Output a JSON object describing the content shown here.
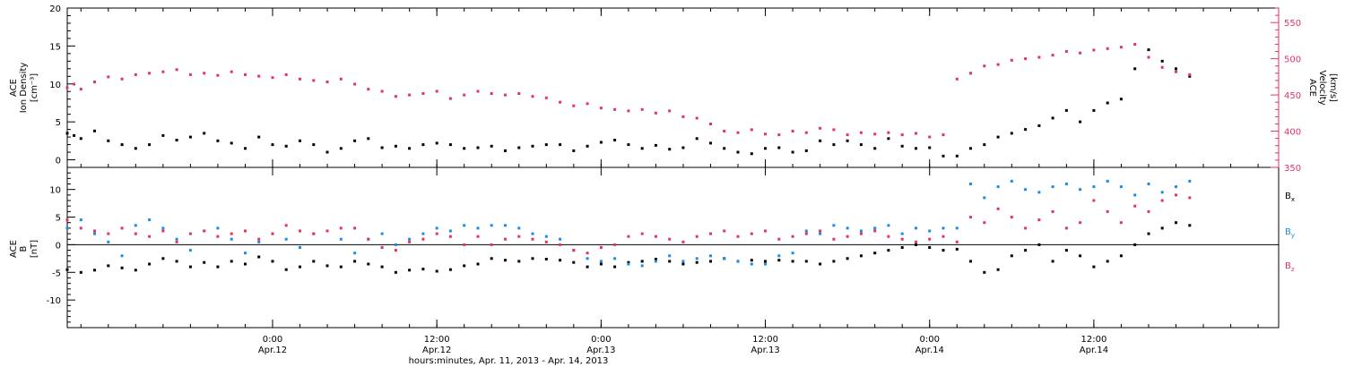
{
  "chart_data": [
    {
      "type": "scatter",
      "panel": "top",
      "ylabel_lines": [
        "ACE",
        "Ion Density",
        "[cm⁻³]"
      ],
      "y2label_lines": [
        "ACE",
        "Velocity",
        "[km/s]"
      ],
      "ylim": [
        -1,
        20
      ],
      "y2lim": [
        350,
        570
      ],
      "yticks": [
        0,
        5,
        10,
        15,
        20
      ],
      "y2ticks": [
        350,
        400,
        450,
        500,
        550
      ],
      "series": [
        {
          "axis": "left",
          "color": "#000000",
          "x": [
            0,
            0.5,
            1,
            2,
            3,
            4,
            5,
            6,
            7,
            8,
            9,
            10,
            11,
            12,
            13,
            14,
            15,
            16,
            17,
            18,
            19,
            20,
            21,
            22,
            23,
            24,
            25,
            26,
            27,
            28,
            29,
            30,
            31,
            32,
            33,
            34,
            35,
            36,
            37,
            38,
            39,
            40,
            41,
            42,
            43,
            44,
            45,
            46,
            47,
            48,
            49,
            50,
            51,
            52,
            53,
            54,
            55,
            56,
            57,
            58,
            59,
            60,
            61,
            62,
            63,
            64,
            65,
            66,
            67,
            68,
            69,
            70,
            71,
            72,
            73,
            74,
            75,
            76,
            77,
            78,
            79,
            80,
            81,
            82
          ],
          "values": [
            3.5,
            3.2,
            2.8,
            3.8,
            2.5,
            2.0,
            1.5,
            2.0,
            3.2,
            2.6,
            3.0,
            3.5,
            2.5,
            2.2,
            1.5,
            3.0,
            2.0,
            1.8,
            2.5,
            2.0,
            1.0,
            1.5,
            2.5,
            2.8,
            1.6,
            1.8,
            1.5,
            2.0,
            2.2,
            2.0,
            1.5,
            1.6,
            1.8,
            1.2,
            1.6,
            1.8,
            2.0,
            2.0,
            1.2,
            1.8,
            2.3,
            2.6,
            2.0,
            1.5,
            1.9,
            1.4,
            1.6,
            2.8,
            2.2,
            1.5,
            1.0,
            0.8,
            1.5,
            1.6,
            1.0,
            1.2,
            2.5,
            2.0,
            2.5,
            2.0,
            1.5,
            2.8,
            1.8,
            1.5,
            1.6,
            0.5,
            0.5,
            1.5,
            2.0,
            3.0,
            3.5,
            4.0,
            4.5,
            5.5,
            6.5,
            5.0,
            6.5,
            7.5,
            8.0,
            12.0,
            14.5,
            13.0,
            12.0,
            11.0
          ]
        },
        {
          "axis": "right",
          "color": "#e33364",
          "x": [
            0,
            0.5,
            1,
            2,
            3,
            4,
            5,
            6,
            7,
            8,
            9,
            10,
            11,
            12,
            13,
            14,
            15,
            16,
            17,
            18,
            19,
            20,
            21,
            22,
            23,
            24,
            25,
            26,
            27,
            28,
            29,
            30,
            31,
            32,
            33,
            34,
            35,
            36,
            37,
            38,
            39,
            40,
            41,
            42,
            43,
            44,
            45,
            46,
            47,
            48,
            49,
            50,
            51,
            52,
            53,
            54,
            55,
            56,
            57,
            58,
            59,
            60,
            61,
            62,
            63,
            64,
            65,
            66,
            67,
            68,
            69,
            70,
            71,
            72,
            73,
            74,
            75,
            76,
            77,
            78,
            79,
            80,
            81,
            82
          ],
          "values": [
            460,
            465,
            458,
            468,
            475,
            472,
            478,
            480,
            482,
            485,
            478,
            480,
            477,
            482,
            478,
            476,
            474,
            478,
            472,
            470,
            468,
            472,
            465,
            458,
            455,
            448,
            450,
            452,
            455,
            445,
            450,
            455,
            452,
            450,
            452,
            448,
            446,
            440,
            435,
            438,
            432,
            430,
            428,
            430,
            425,
            428,
            420,
            418,
            410,
            400,
            398,
            402,
            396,
            395,
            400,
            398,
            404,
            402,
            395,
            398,
            396,
            398,
            395,
            397,
            392,
            395,
            472,
            480,
            490,
            492,
            498,
            500,
            502,
            505,
            510,
            508,
            512,
            514,
            516,
            520,
            502,
            488,
            482,
            478
          ]
        }
      ]
    },
    {
      "type": "scatter",
      "panel": "bottom",
      "ylabel_lines": [
        "ACE",
        "B",
        "[nT]"
      ],
      "ylim": [
        -15,
        14
      ],
      "yticks": [
        -10,
        -5,
        0,
        5,
        10
      ],
      "zero_line": true,
      "series": [
        {
          "name": "Bx",
          "label_main": "B",
          "label_sub": "x",
          "color": "#000000",
          "x": [
            0,
            1,
            2,
            3,
            4,
            5,
            6,
            7,
            8,
            9,
            10,
            11,
            12,
            13,
            14,
            15,
            16,
            17,
            18,
            19,
            20,
            21,
            22,
            23,
            24,
            25,
            26,
            27,
            28,
            29,
            30,
            31,
            32,
            33,
            34,
            35,
            36,
            37,
            38,
            39,
            40,
            41,
            42,
            43,
            44,
            45,
            46,
            47,
            48,
            49,
            50,
            51,
            52,
            53,
            54,
            55,
            56,
            57,
            58,
            59,
            60,
            61,
            62,
            63,
            64,
            65,
            66,
            67,
            68,
            69,
            70,
            71,
            72,
            73,
            74,
            75,
            76,
            77,
            78,
            79,
            80,
            81,
            82
          ],
          "values": [
            -4.5,
            -5.0,
            -4.6,
            -3.8,
            -4.2,
            -4.6,
            -3.5,
            -2.5,
            -3.0,
            -4.0,
            -3.2,
            -4.0,
            -3.0,
            -3.5,
            -2.2,
            -3.0,
            -4.5,
            -4.0,
            -3.0,
            -3.8,
            -4.0,
            -3.0,
            -3.5,
            -4.0,
            -5.0,
            -4.6,
            -4.4,
            -4.8,
            -4.5,
            -3.8,
            -3.5,
            -2.5,
            -2.8,
            -3.0,
            -2.5,
            -2.6,
            -2.8,
            -3.2,
            -4.0,
            -3.5,
            -4.0,
            -3.2,
            -3.0,
            -2.6,
            -3.0,
            -3.5,
            -3.2,
            -3.0,
            -2.5,
            -3.0,
            -2.8,
            -3.0,
            -2.8,
            -3.0,
            -3.0,
            -3.5,
            -3.0,
            -2.5,
            -2.0,
            -1.5,
            -1.0,
            -0.5,
            0.0,
            -0.5,
            -1.0,
            -0.8,
            -3.0,
            -5.0,
            -4.5,
            -2.0,
            -1.0,
            0.0,
            -3.0,
            -1.0,
            -2.0,
            -4.0,
            -3.0,
            -2.0,
            0.0,
            2.0,
            3.0,
            4.0,
            3.5
          ]
        },
        {
          "name": "By",
          "label_main": "B",
          "label_sub": "y",
          "color": "#1f8ae6",
          "x": [
            0,
            1,
            2,
            3,
            4,
            5,
            6,
            7,
            8,
            9,
            10,
            11,
            12,
            13,
            14,
            15,
            16,
            17,
            18,
            19,
            20,
            21,
            22,
            23,
            24,
            25,
            26,
            27,
            28,
            29,
            30,
            31,
            32,
            33,
            34,
            35,
            36,
            37,
            38,
            39,
            40,
            41,
            42,
            43,
            44,
            45,
            46,
            47,
            48,
            49,
            50,
            51,
            52,
            53,
            54,
            55,
            56,
            57,
            58,
            59,
            60,
            61,
            62,
            63,
            64,
            65,
            66,
            67,
            68,
            69,
            70,
            71,
            72,
            73,
            74,
            75,
            76,
            77,
            78,
            79,
            80,
            81,
            82
          ],
          "values": [
            3.0,
            4.5,
            2.0,
            0.5,
            -2.0,
            3.5,
            4.5,
            3.0,
            1.0,
            -1.0,
            2.5,
            3.0,
            1.0,
            -1.5,
            0.5,
            2.0,
            1.0,
            -0.5,
            2.0,
            2.5,
            1.0,
            -1.5,
            1.0,
            2.0,
            0.0,
            1.0,
            2.0,
            3.0,
            2.5,
            3.5,
            3.0,
            3.5,
            3.5,
            3.0,
            2.0,
            1.5,
            1.0,
            -1.0,
            -2.5,
            -3.0,
            -2.5,
            -3.5,
            -3.8,
            -3.0,
            -2.0,
            -3.0,
            -2.5,
            -2.0,
            -2.5,
            -3.0,
            -3.5,
            -3.5,
            -2.0,
            -1.5,
            2.5,
            2.0,
            3.5,
            3.0,
            2.5,
            3.0,
            3.5,
            2.0,
            3.0,
            2.5,
            3.0,
            3.0,
            11.0,
            8.5,
            10.5,
            11.5,
            10.0,
            9.5,
            10.5,
            11.0,
            10.0,
            10.5,
            11.5,
            10.5,
            9.0,
            11.0,
            9.5,
            10.5,
            11.5
          ]
        },
        {
          "name": "Bz",
          "label_main": "B",
          "label_sub": "z",
          "color": "#e33364",
          "x": [
            0,
            1,
            2,
            3,
            4,
            5,
            6,
            7,
            8,
            9,
            10,
            11,
            12,
            13,
            14,
            15,
            16,
            17,
            18,
            19,
            20,
            21,
            22,
            23,
            24,
            25,
            26,
            27,
            28,
            29,
            30,
            31,
            32,
            33,
            34,
            35,
            36,
            37,
            38,
            39,
            40,
            41,
            42,
            43,
            44,
            45,
            46,
            47,
            48,
            49,
            50,
            51,
            52,
            53,
            54,
            55,
            56,
            57,
            58,
            59,
            60,
            61,
            62,
            63,
            64,
            65,
            66,
            67,
            68,
            69,
            70,
            71,
            72,
            73,
            74,
            75,
            76,
            77,
            78,
            79,
            80,
            81,
            82
          ],
          "values": [
            4.5,
            3.0,
            2.5,
            2.0,
            3.0,
            2.0,
            1.5,
            2.5,
            0.5,
            2.0,
            2.5,
            1.5,
            2.0,
            2.5,
            1.0,
            2.0,
            3.5,
            2.5,
            2.0,
            2.5,
            3.0,
            3.0,
            1.0,
            -0.5,
            -1.0,
            0.5,
            1.0,
            2.0,
            1.5,
            0.0,
            1.5,
            0.0,
            1.0,
            1.5,
            1.0,
            0.5,
            0.0,
            -1.0,
            -1.5,
            -0.5,
            0.0,
            1.5,
            2.0,
            1.5,
            1.0,
            0.5,
            1.5,
            2.0,
            2.5,
            1.5,
            2.0,
            2.5,
            1.0,
            1.5,
            2.0,
            2.5,
            1.0,
            1.5,
            2.0,
            2.5,
            1.5,
            1.0,
            0.5,
            1.0,
            1.5,
            0.5,
            5.0,
            4.0,
            6.5,
            5.0,
            3.0,
            4.5,
            6.0,
            3.0,
            4.0,
            8.0,
            6.0,
            4.0,
            7.0,
            6.0,
            8.0,
            9.0,
            8.5
          ]
        }
      ]
    }
  ],
  "time_axis": {
    "xlim": [
      0,
      88.5
    ],
    "major_ticks": [
      {
        "x": 15,
        "time": "0:00",
        "date": "Apr.12"
      },
      {
        "x": 27,
        "time": "12:00",
        "date": "Apr.12"
      },
      {
        "x": 39,
        "time": "0:00",
        "date": "Apr.13"
      },
      {
        "x": 51,
        "time": "12:00",
        "date": "Apr.13"
      },
      {
        "x": 63,
        "time": "0:00",
        "date": "Apr.14"
      },
      {
        "x": 75,
        "time": "12:00",
        "date": "Apr.14"
      }
    ],
    "title": "hours:minutes, Apr. 11, 2013 - Apr. 14, 2013"
  },
  "colors": {
    "axis": "#000000",
    "accent": "#e33364",
    "by": "#1f8ae6"
  }
}
